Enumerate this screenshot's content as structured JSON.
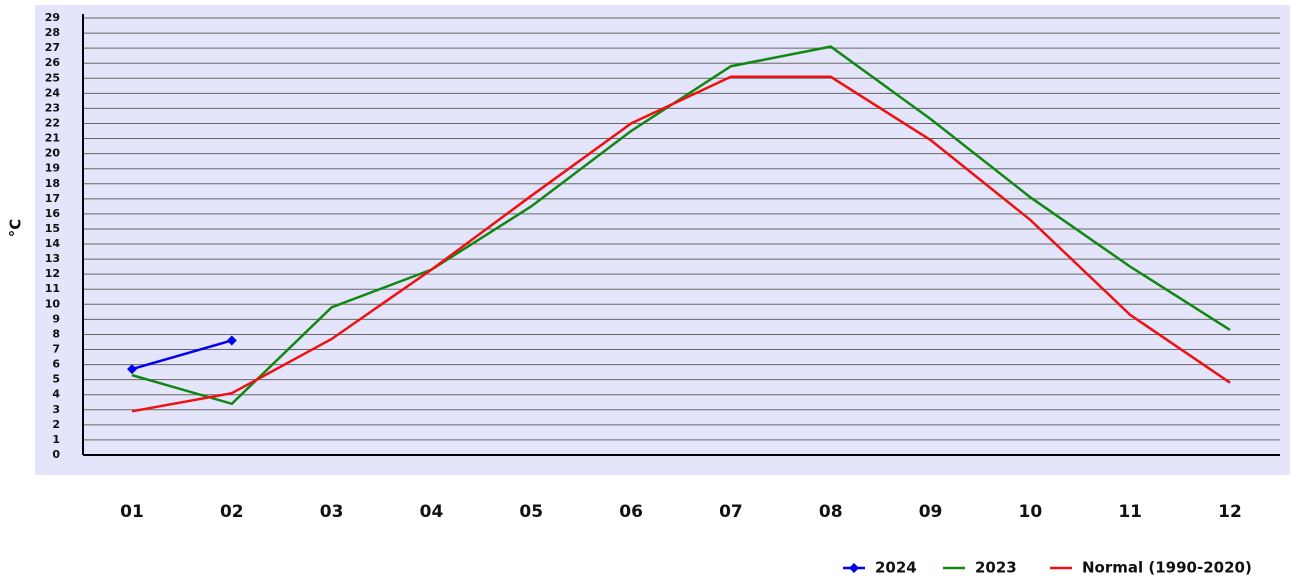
{
  "chart_data": {
    "type": "line",
    "y_label": "°C",
    "categories": [
      "01",
      "02",
      "03",
      "04",
      "05",
      "06",
      "07",
      "08",
      "09",
      "10",
      "11",
      "12"
    ],
    "series": [
      {
        "name": "2024",
        "color": "#0000ee",
        "marker": "diamond",
        "values": [
          5.7,
          7.6,
          null,
          null,
          null,
          null,
          null,
          null,
          null,
          null,
          null,
          null
        ]
      },
      {
        "name": "2023",
        "color": "#118811",
        "values": [
          5.3,
          3.4,
          9.8,
          12.3,
          16.5,
          21.5,
          25.8,
          27.1,
          22.3,
          17.1,
          12.5,
          8.3
        ]
      },
      {
        "name": "Normal (1990-2020)",
        "color": "#ee1111",
        "values": [
          2.9,
          4.1,
          7.7,
          12.3,
          17.2,
          22.0,
          25.1,
          25.1,
          20.9,
          15.6,
          9.3,
          4.8
        ]
      }
    ],
    "ylim": [
      0,
      29
    ],
    "yticks": [
      0,
      1,
      2,
      3,
      4,
      5,
      6,
      7,
      8,
      9,
      10,
      11,
      12,
      13,
      14,
      15,
      16,
      17,
      18,
      19,
      20,
      21,
      22,
      23,
      24,
      25,
      26,
      27,
      28,
      29
    ],
    "grid": true,
    "legend": "bottom-right"
  }
}
